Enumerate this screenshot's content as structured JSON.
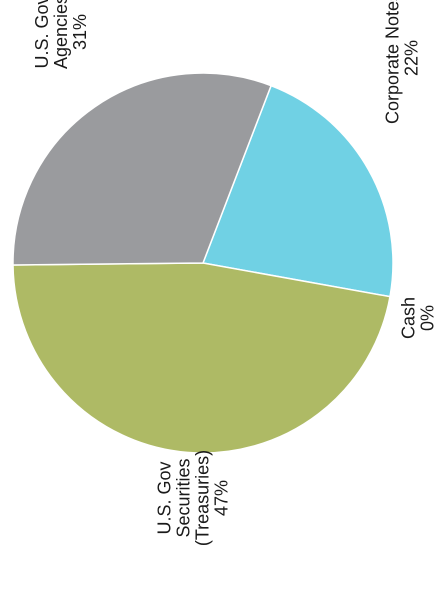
{
  "chart_data": {
    "type": "pie",
    "title": "",
    "slices": [
      {
        "name": "Corporate Notes",
        "label_lines": [
          "Corporate Notes",
          "22%"
        ],
        "value": 22,
        "color": "#70d1e4"
      },
      {
        "name": "Cash",
        "label_lines": [
          "Cash",
          "0%"
        ],
        "value": 0,
        "color": "#70d1e4"
      },
      {
        "name": "U.S. Gov Securities (Treasuries)",
        "label_lines": [
          "U.S. Gov",
          "Securities",
          "(Treasuries)",
          "47%"
        ],
        "value": 47,
        "color": "#aeba65"
      },
      {
        "name": "U.S. Gov Agencies",
        "label_lines": [
          "U.S. Gov",
          "Agencies",
          "31%"
        ],
        "value": 31,
        "color": "#9a9b9e"
      }
    ],
    "legend": "none",
    "label_orientation": "rotated 90° counter-clockwise"
  }
}
